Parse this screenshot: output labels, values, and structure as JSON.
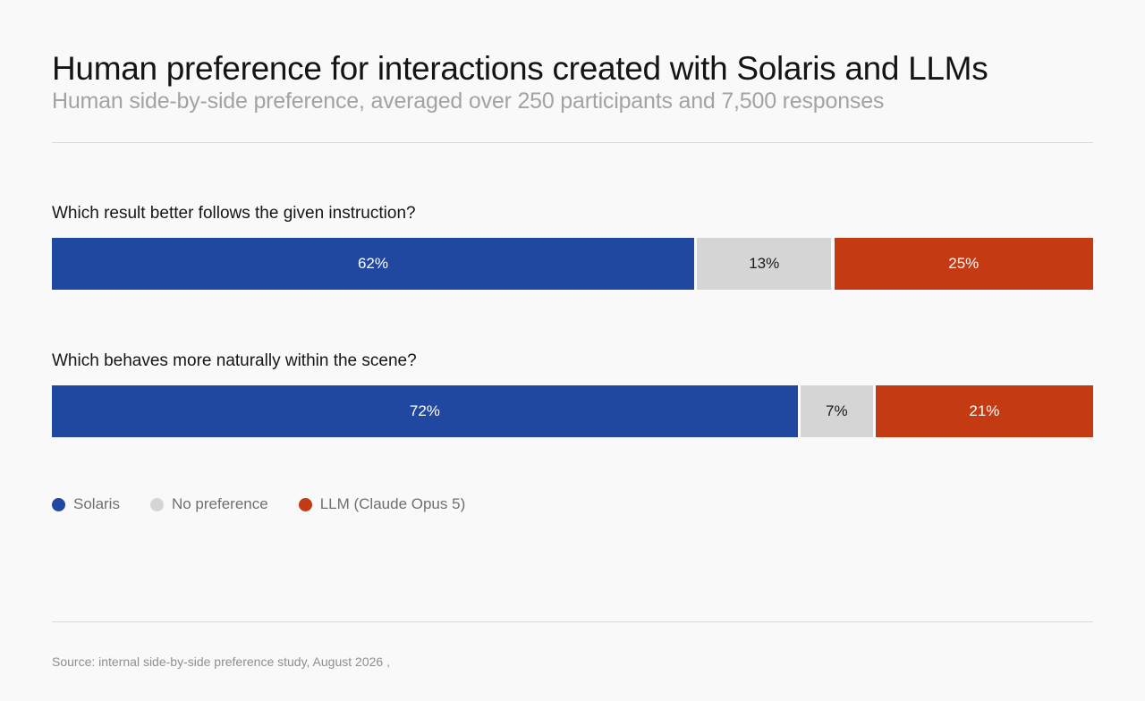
{
  "chart_data": {
    "type": "bar",
    "orientation": "horizontal-stacked-100",
    "title": "Human preference for interactions created with Solaris and LLMs",
    "subtitle": "Human side-by-side preference, averaged over 250 participants and 7,500 responses",
    "categories": [
      "Which result better follows the given instruction?",
      "Which behaves more naturally within the scene?"
    ],
    "series": [
      {
        "name": "Solaris",
        "color": "#2148a0",
        "label_color": "#ffffff",
        "values": [
          62,
          72
        ],
        "labels": [
          "62%",
          "72%"
        ]
      },
      {
        "name": "No preference",
        "color": "#d5d5d5",
        "label_color": "#1a1a1a",
        "values": [
          13,
          7
        ],
        "labels": [
          "13%",
          "7%"
        ]
      },
      {
        "name": "LLM (Claude Opus 5)",
        "color": "#c43a12",
        "label_color": "#ffffff",
        "values": [
          25,
          21
        ],
        "labels": [
          "25%",
          "21%"
        ]
      }
    ],
    "xlim": [
      0,
      100
    ],
    "grid": false,
    "legend_position": "bottom-left"
  },
  "source": "Source: internal side-by-side preference study, August 2026 ,"
}
